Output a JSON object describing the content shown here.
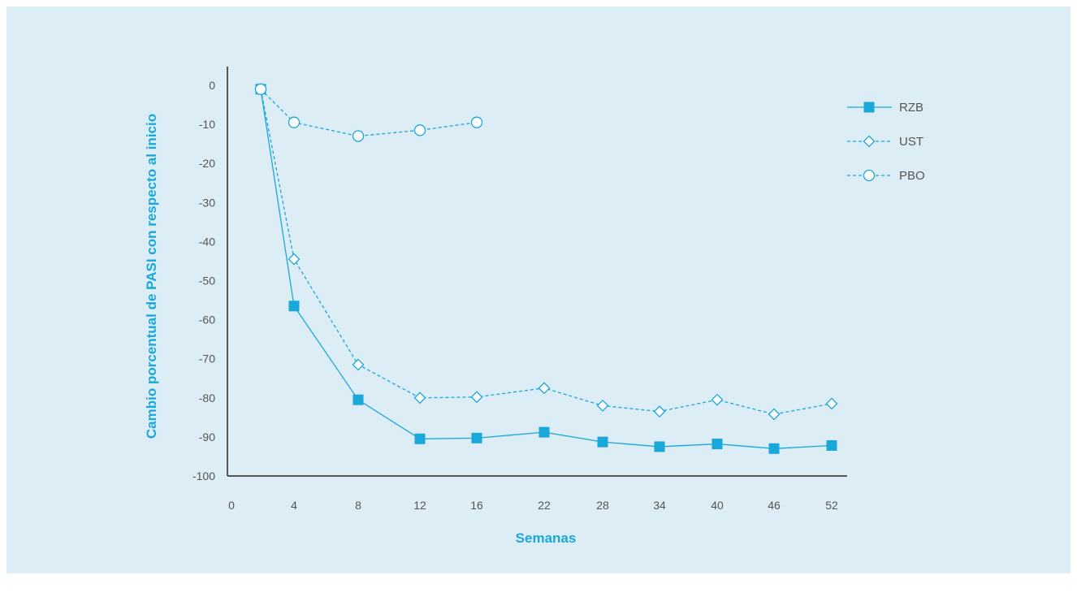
{
  "chart_data": {
    "type": "line",
    "xlabel": "Semanas",
    "ylabel": "Cambio porcentual de PASI con respecto al inicio",
    "x_ticks": [
      "0",
      "4",
      "8",
      "12",
      "16",
      "22",
      "28",
      "34",
      "40",
      "46",
      "52"
    ],
    "y_ticks": [
      0,
      -10,
      -20,
      -30,
      -40,
      -50,
      -60,
      -70,
      -80,
      -90,
      -100
    ],
    "ylim": [
      -100,
      0
    ],
    "legend_position": "top-right",
    "grid": false,
    "series": [
      {
        "name": "RZB",
        "line_style": "solid",
        "marker": "filled-square",
        "points": [
          [
            2,
            -1
          ],
          [
            4,
            -56.5
          ],
          [
            8,
            -80.5
          ],
          [
            12,
            -90.5
          ],
          [
            16,
            -90.3
          ],
          [
            22,
            -88.8
          ],
          [
            28,
            -91.3
          ],
          [
            34,
            -92.5
          ],
          [
            40,
            -91.8
          ],
          [
            46,
            -93
          ],
          [
            52,
            -92.2
          ]
        ]
      },
      {
        "name": "UST",
        "line_style": "dashed",
        "marker": "open-diamond",
        "points": [
          [
            2,
            -1
          ],
          [
            4,
            -44.5
          ],
          [
            8,
            -71.5
          ],
          [
            12,
            -80
          ],
          [
            16,
            -79.8
          ],
          [
            22,
            -77.5
          ],
          [
            28,
            -82
          ],
          [
            34,
            -83.5
          ],
          [
            40,
            -80.5
          ],
          [
            46,
            -84.2
          ],
          [
            52,
            -81.5
          ]
        ]
      },
      {
        "name": "PBO",
        "line_style": "dashed",
        "marker": "open-circle",
        "points": [
          [
            2,
            -1
          ],
          [
            4,
            -9.5
          ],
          [
            8,
            -13
          ],
          [
            12,
            -11.5
          ],
          [
            16,
            -9.5
          ]
        ]
      }
    ],
    "colors": {
      "line": "#1aa7d9",
      "axis": "#555555",
      "axis_title": "#1aa7d9",
      "background": "#dcedf6"
    }
  }
}
